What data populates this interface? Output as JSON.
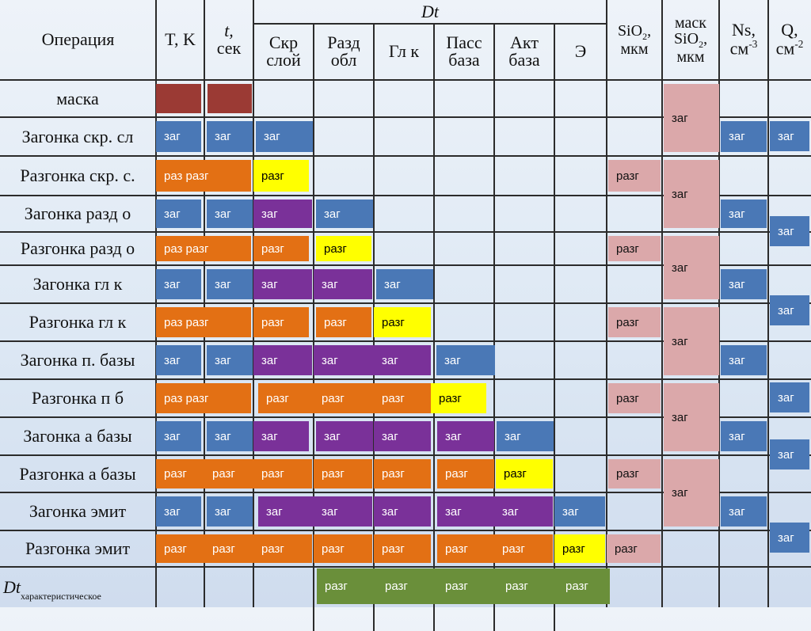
{
  "headers": {
    "operation": "Операция",
    "temperature": "T, K",
    "time_line1": "t,",
    "time_line2": "сек",
    "dt_group": "Dt",
    "dt_cols": [
      [
        "Скр",
        "слой"
      ],
      [
        "Разд",
        "обл"
      ],
      [
        "Гл к"
      ],
      [
        "Пасс",
        "база"
      ],
      [
        "Акт",
        "база"
      ],
      [
        "Э"
      ]
    ],
    "sio2": "SiO",
    "sio2_sub": "2",
    "sio2_unit": "мкм",
    "mask_line1": "маск",
    "mask_sio": "SiO",
    "mask_sub": "2",
    "mask_unit": "мкм",
    "ns": "Ns,",
    "ns_unit": "см",
    "ns_sup": "-3",
    "q": "Q,",
    "q_unit": "см",
    "q_sup": "-2"
  },
  "rows": [
    "маска",
    "Загонка скр. сл",
    "Разгонка скр. с.",
    "Загонка разд о",
    "Разгонка разд о",
    "Загонка гл к",
    "Разгонка гл к",
    "Загонка п. базы",
    "Разгонка п б",
    "Загонка а базы",
    "Разгонка а базы",
    "Загонка эмит",
    "Разгонка эмит"
  ],
  "footer_row": {
    "label": "Dt",
    "label_sub": "характеристическое"
  },
  "labels": {
    "zag": "заг",
    "razg": "разг",
    "raz": "раз"
  },
  "colors": {
    "zag": "#4a78b6",
    "razg": "#e37014",
    "highlight": "#ffff00",
    "prior": "#7a3199",
    "mask": "#dba8aa",
    "mask_row": "#9b3a34",
    "characteristic": "#6a8f3a"
  },
  "mask_column_blocks": [
    {
      "label": "заг"
    },
    {
      "label": "заг"
    },
    {
      "label": "заг"
    },
    {
      "label": "заг"
    },
    {
      "label": "заг"
    },
    {
      "label": "заг"
    }
  ]
}
